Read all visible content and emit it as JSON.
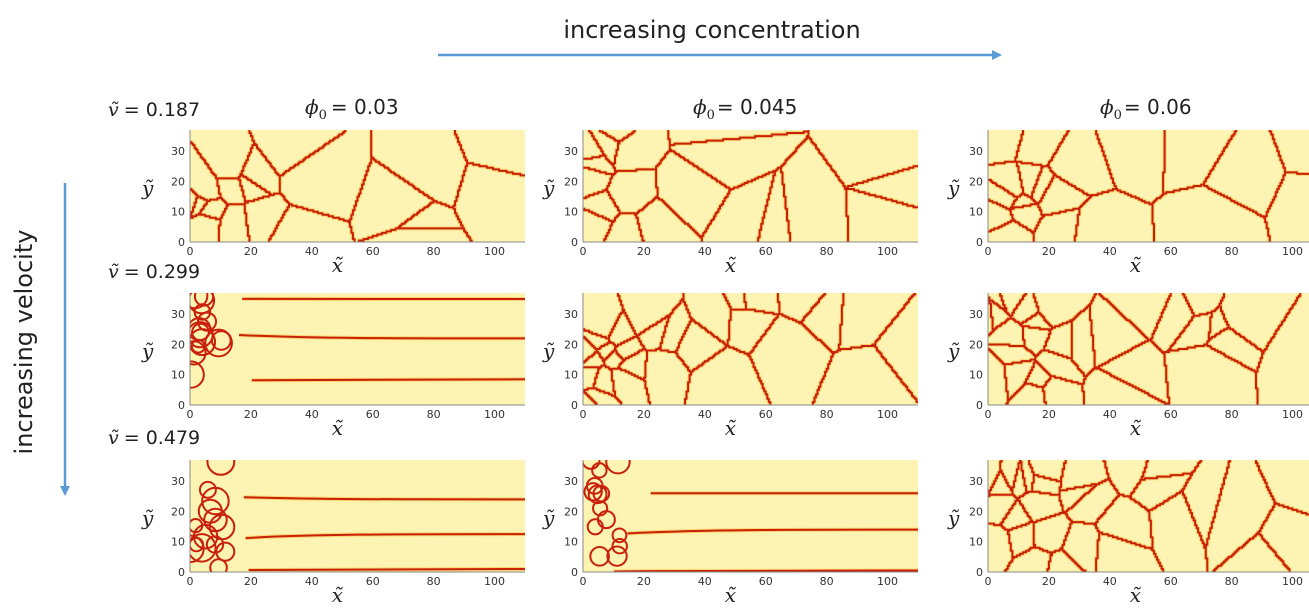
{
  "header": {
    "concentration_label": "increasing concentration",
    "velocity_label": "increasing velocity",
    "arrow_color": "#5b9bd5"
  },
  "columns": [
    {
      "label": "ϕ",
      "sub": "0",
      "value": "= 0.03"
    },
    {
      "label": "ϕ",
      "sub": "0",
      "value": "= 0.045"
    },
    {
      "label": "ϕ",
      "sub": "0",
      "value": "= 0.06"
    }
  ],
  "rows": [
    {
      "label": "ṽ",
      "value": "= 0.187"
    },
    {
      "label": "ṽ",
      "value": "= 0.299"
    },
    {
      "label": "ṽ",
      "value": "= 0.479"
    }
  ],
  "axes": {
    "x_label": "x̃",
    "y_label": "ỹ",
    "x_ticks": [
      "0",
      "20",
      "40",
      "60",
      "80",
      "100"
    ],
    "y_ticks": [
      "0",
      "10",
      "20",
      "30"
    ]
  },
  "colors": {
    "background": "#fdf3b3",
    "boundary": "#c8200b",
    "glow": "#f3b21c"
  },
  "panels": [
    {
      "row": 0,
      "col": 0,
      "pattern": "cells-large"
    },
    {
      "row": 0,
      "col": 1,
      "pattern": "cells-large"
    },
    {
      "row": 0,
      "col": 2,
      "pattern": "cells-large"
    },
    {
      "row": 1,
      "col": 0,
      "pattern": "stripes"
    },
    {
      "row": 1,
      "col": 1,
      "pattern": "cells-dense"
    },
    {
      "row": 1,
      "col": 2,
      "pattern": "cells-dense"
    },
    {
      "row": 2,
      "col": 0,
      "pattern": "stripes"
    },
    {
      "row": 2,
      "col": 1,
      "pattern": "stripes"
    },
    {
      "row": 2,
      "col": 2,
      "pattern": "cells-dense"
    }
  ]
}
